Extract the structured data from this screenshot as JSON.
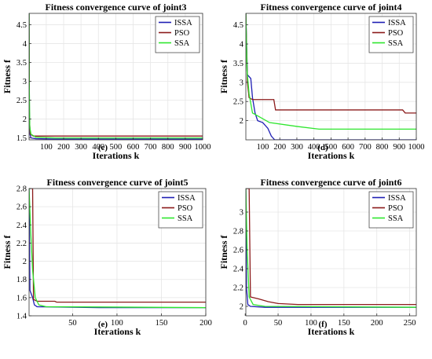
{
  "colors": {
    "ISSA": "#1f1fb4",
    "PSO": "#8b1a1a",
    "SSA": "#2ee62e"
  },
  "chart_data": [
    {
      "type": "line",
      "panel_label": "(c)",
      "title": "Fitness convergence curve of joint3",
      "xlabel": "Iterations k",
      "ylabel": "Fitness f",
      "xlim": [
        1,
        1000
      ],
      "ylim": [
        1.45,
        4.8
      ],
      "xticks": [
        100,
        200,
        300,
        400,
        500,
        600,
        700,
        800,
        900,
        1000
      ],
      "yticks": [
        1.5,
        2,
        2.5,
        3,
        3.5,
        4,
        4.5
      ],
      "ytick_labels": [
        "1.5",
        "2",
        "2.5",
        "3",
        "3.5",
        "4",
        "4.5"
      ],
      "grid": true,
      "legend_position": "top-right",
      "series": [
        {
          "name": "ISSA",
          "points": [
            [
              1,
              4.8
            ],
            [
              3,
              2.2
            ],
            [
              6,
              1.6
            ],
            [
              12,
              1.5
            ],
            [
              40,
              1.48
            ],
            [
              150,
              1.47
            ],
            [
              400,
              1.47
            ],
            [
              1000,
              1.47
            ]
          ]
        },
        {
          "name": "PSO",
          "points": [
            [
              1,
              4.8
            ],
            [
              3,
              2.0
            ],
            [
              8,
              1.6
            ],
            [
              25,
              1.55
            ],
            [
              1000,
              1.55
            ]
          ]
        },
        {
          "name": "SSA",
          "points": [
            [
              1,
              4.8
            ],
            [
              2,
              3.0
            ],
            [
              5,
              1.8
            ],
            [
              12,
              1.6
            ],
            [
              40,
              1.52
            ],
            [
              150,
              1.5
            ],
            [
              1000,
              1.5
            ]
          ]
        }
      ]
    },
    {
      "type": "line",
      "panel_label": "(d)",
      "title": "Fitness convergence curve of joint4",
      "xlabel": "Iterations k",
      "ylabel": "Fitness f",
      "xlim": [
        1,
        1000
      ],
      "ylim": [
        1.5,
        4.8
      ],
      "xticks": [
        100,
        200,
        300,
        400,
        500,
        600,
        700,
        800,
        900,
        1000
      ],
      "yticks": [
        2,
        2.5,
        3,
        3.5,
        4,
        4.5
      ],
      "ytick_labels": [
        "2",
        "2.5",
        "3",
        "3.5",
        "4",
        "4.5"
      ],
      "grid": true,
      "legend_position": "top-right",
      "series": [
        {
          "name": "ISSA",
          "points": [
            [
              1,
              4.8
            ],
            [
              10,
              3.2
            ],
            [
              30,
              3.1
            ],
            [
              40,
              2.6
            ],
            [
              55,
              2.2
            ],
            [
              70,
              2.0
            ],
            [
              100,
              1.95
            ],
            [
              130,
              1.8
            ],
            [
              150,
              1.6
            ],
            [
              170,
              1.5
            ],
            [
              1000,
              1.5
            ]
          ]
        },
        {
          "name": "PSO",
          "points": [
            [
              1,
              4.8
            ],
            [
              10,
              3.0
            ],
            [
              20,
              2.6
            ],
            [
              40,
              2.55
            ],
            [
              165,
              2.55
            ],
            [
              175,
              2.28
            ],
            [
              920,
              2.28
            ],
            [
              935,
              2.2
            ],
            [
              1000,
              2.2
            ]
          ]
        },
        {
          "name": "SSA",
          "points": [
            [
              1,
              4.8
            ],
            [
              8,
              3.3
            ],
            [
              20,
              2.7
            ],
            [
              40,
              2.2
            ],
            [
              80,
              2.1
            ],
            [
              140,
              1.95
            ],
            [
              300,
              1.85
            ],
            [
              430,
              1.78
            ],
            [
              1000,
              1.78
            ]
          ]
        }
      ]
    },
    {
      "type": "line",
      "panel_label": "(e)",
      "title": "Fitness convergence curve of joint5",
      "xlabel": "Iterations k",
      "ylabel": "Fitness f",
      "xlim": [
        1,
        200
      ],
      "ylim": [
        1.4,
        2.8
      ],
      "xticks": [
        50,
        100,
        150,
        200
      ],
      "yticks": [
        1.4,
        1.6,
        1.8,
        2,
        2.2,
        2.4,
        2.6,
        2.8
      ],
      "ytick_labels": [
        "1.4",
        "1.6",
        "1.8",
        "2",
        "2.2",
        "2.4",
        "2.6",
        "2.8"
      ],
      "grid": true,
      "legend_position": "top-right",
      "series": [
        {
          "name": "ISSA",
          "points": [
            [
              1,
              2.8
            ],
            [
              2,
              1.68
            ],
            [
              5,
              1.6
            ],
            [
              7,
              1.52
            ],
            [
              10,
              1.5
            ],
            [
              80,
              1.49
            ],
            [
              200,
              1.49
            ]
          ]
        },
        {
          "name": "PSO",
          "points": [
            [
              1,
              2.8
            ],
            [
              5,
              2.8
            ],
            [
              6,
              1.58
            ],
            [
              10,
              1.56
            ],
            [
              30,
              1.56
            ],
            [
              32,
              1.55
            ],
            [
              200,
              1.55
            ]
          ]
        },
        {
          "name": "SSA",
          "points": [
            [
              1,
              2.8
            ],
            [
              3,
              2.3
            ],
            [
              5,
              1.9
            ],
            [
              8,
              1.6
            ],
            [
              12,
              1.52
            ],
            [
              20,
              1.5
            ],
            [
              200,
              1.49
            ]
          ]
        }
      ]
    },
    {
      "type": "line",
      "panel_label": "(f)",
      "title": "Fitness convergence curve of joint6",
      "xlabel": "Iterations k",
      "ylabel": "Fitness f",
      "xlim": [
        1,
        260
      ],
      "ylim": [
        1.9,
        3.25
      ],
      "xticks": [
        0,
        50,
        100,
        150,
        200,
        250
      ],
      "yticks": [
        2,
        2.2,
        2.4,
        2.6,
        2.8,
        3
      ],
      "ytick_labels": [
        "2",
        "2.2",
        "2.4",
        "2.6",
        "2.8",
        "3"
      ],
      "grid": true,
      "legend_position": "top-right",
      "series": [
        {
          "name": "ISSA",
          "points": [
            [
              1,
              3.25
            ],
            [
              2,
              2.2
            ],
            [
              4,
              2.02
            ],
            [
              8,
              2.0
            ],
            [
              30,
              1.99
            ],
            [
              260,
              1.99
            ]
          ]
        },
        {
          "name": "PSO",
          "points": [
            [
              1,
              3.25
            ],
            [
              6,
              3.25
            ],
            [
              8,
              2.1
            ],
            [
              20,
              2.08
            ],
            [
              35,
              2.05
            ],
            [
              50,
              2.03
            ],
            [
              80,
              2.02
            ],
            [
              260,
              2.02
            ]
          ]
        },
        {
          "name": "SSA",
          "points": [
            [
              1,
              3.25
            ],
            [
              3,
              2.6
            ],
            [
              6,
              2.1
            ],
            [
              12,
              2.02
            ],
            [
              30,
              2.0
            ],
            [
              260,
              1.99
            ]
          ]
        }
      ]
    }
  ]
}
